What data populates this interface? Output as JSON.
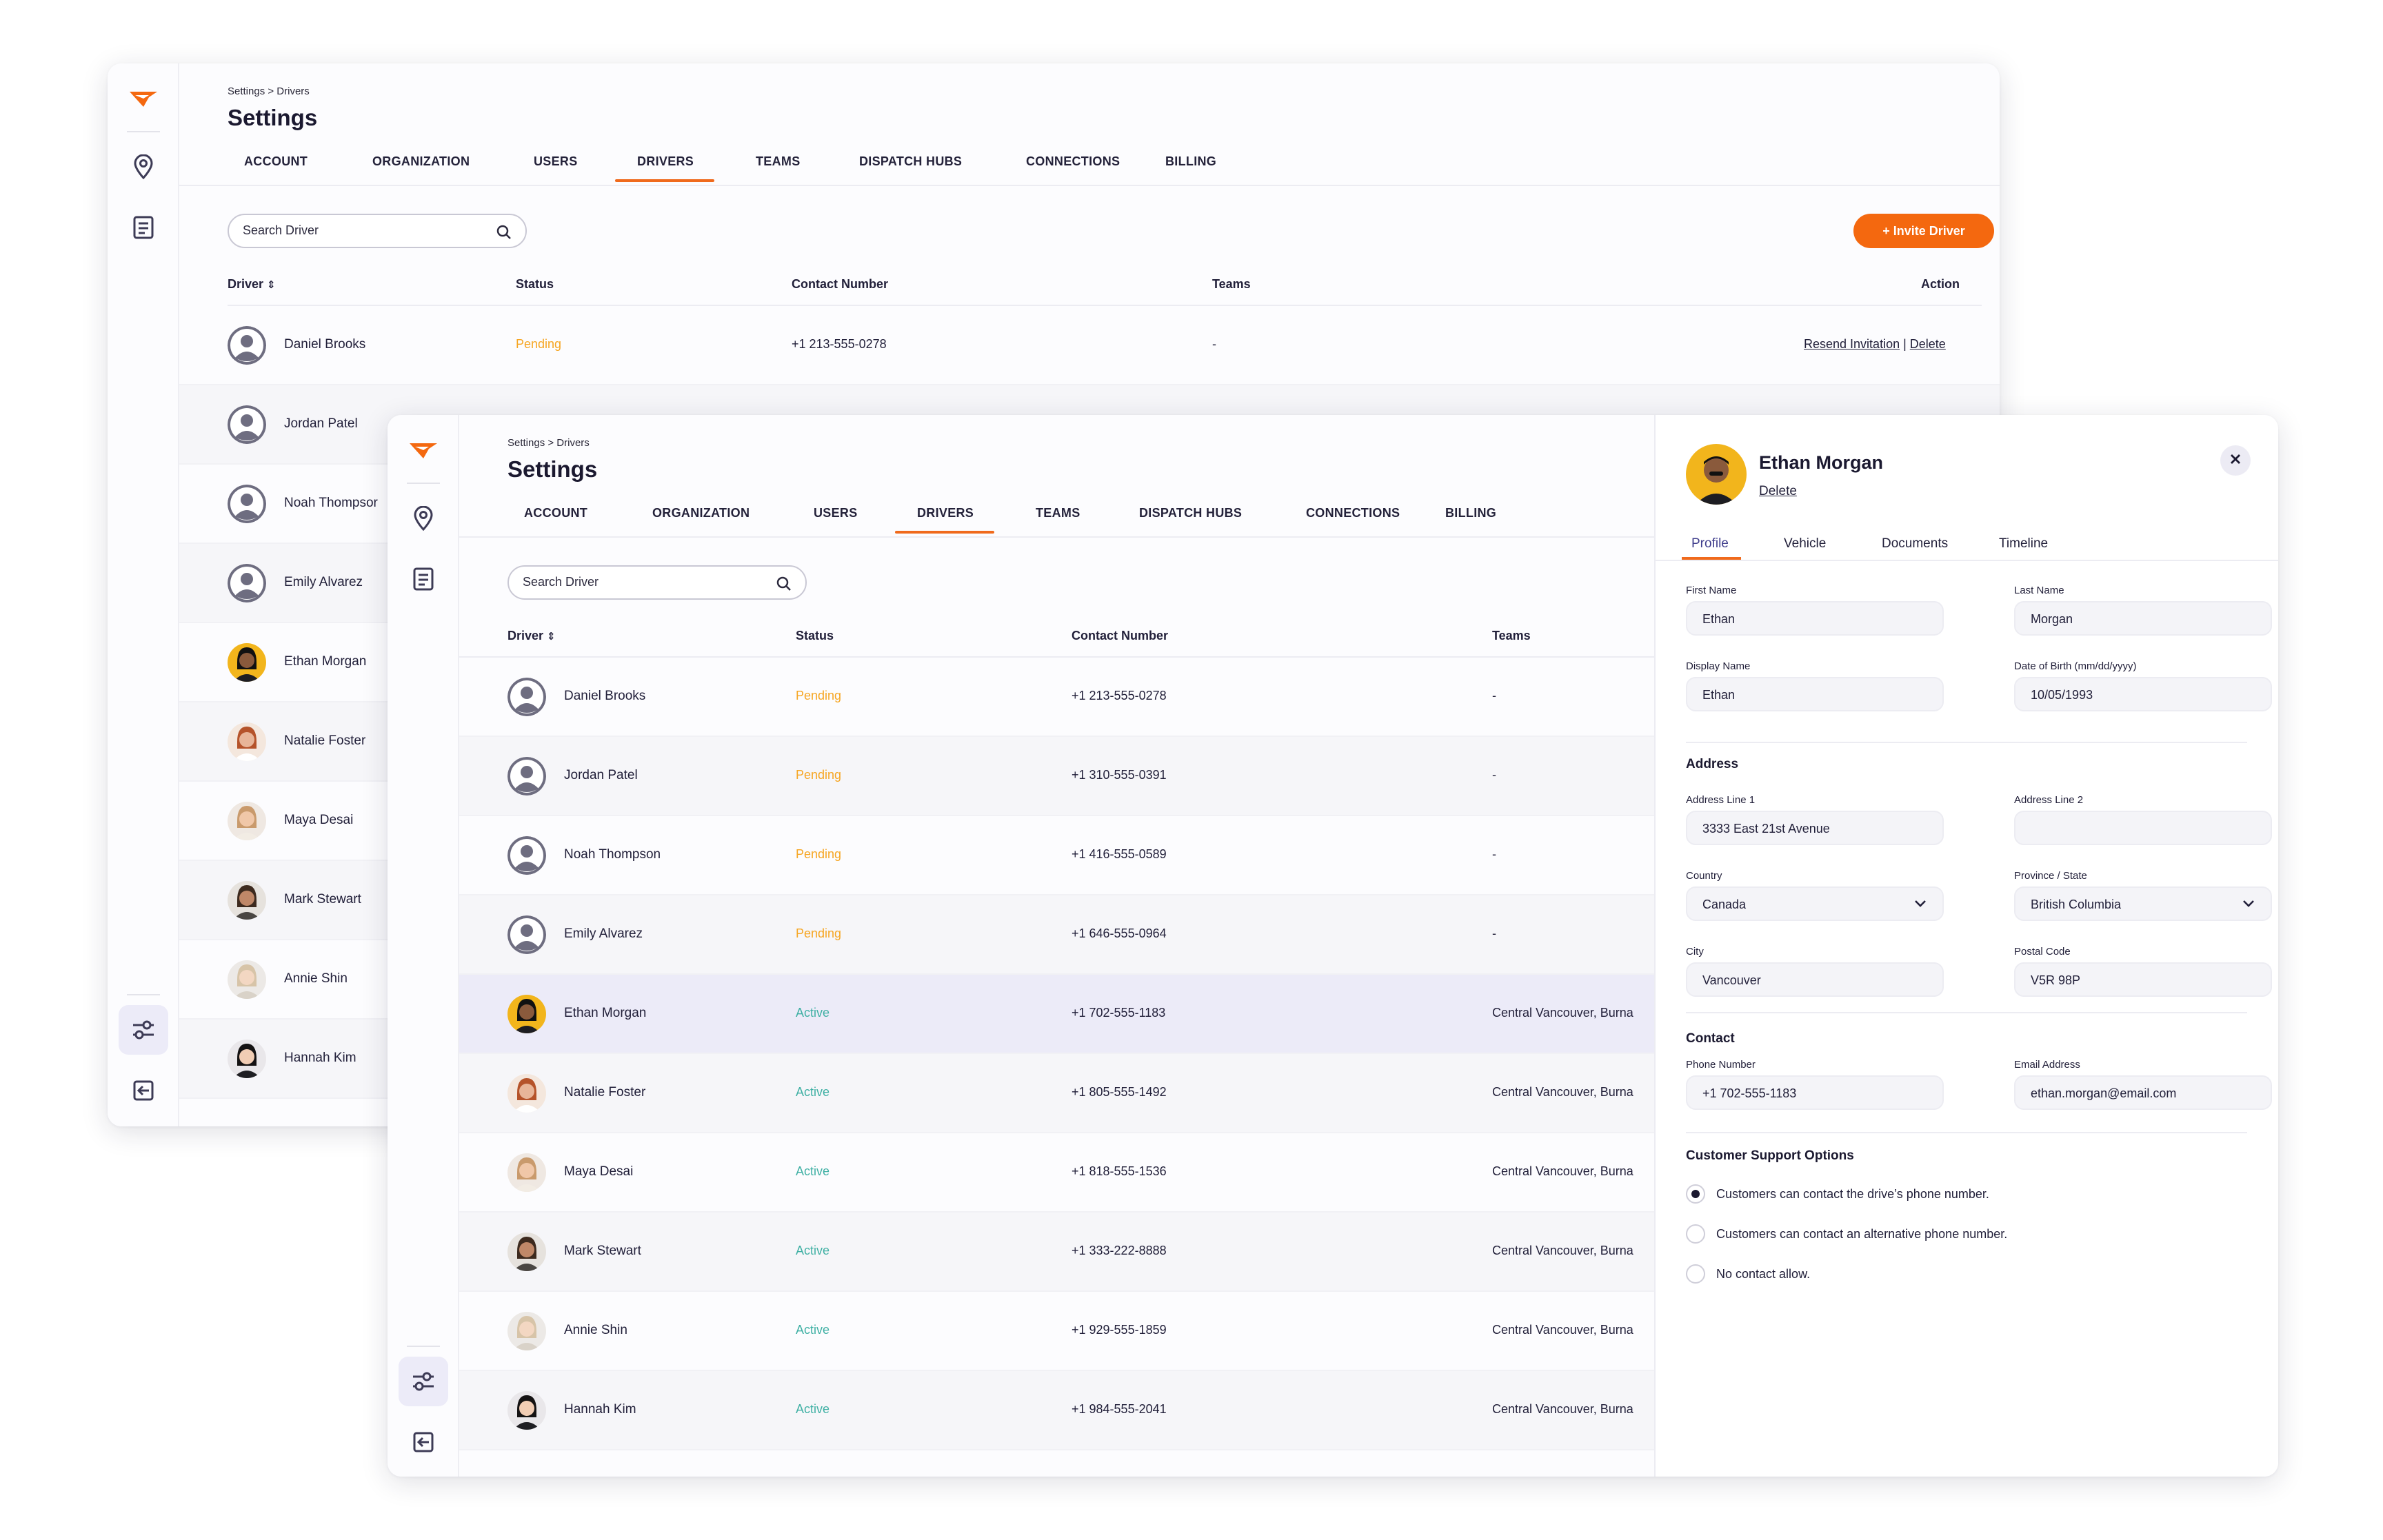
{
  "app": {
    "breadcrumb": "Settings > Drivers",
    "title": "Settings",
    "tabs": [
      "ACCOUNT",
      "ORGANIZATION",
      "USERS",
      "DRIVERS",
      "TEAMS",
      "DISPATCH HUBS",
      "CONNECTIONS",
      "BILLING"
    ],
    "active_tab": "DRIVERS",
    "search_placeholder": "Search Driver",
    "invite_label": "+ Invite Driver",
    "accent_color": "#f4680f",
    "columns": {
      "driver": "Driver",
      "status": "Status",
      "contact": "Contact Number",
      "teams": "Teams",
      "action": "Action"
    },
    "action_first_row": {
      "resend": "Resend Invitation",
      "sep": "|",
      "delete": "Delete"
    }
  },
  "drivers": [
    {
      "name": "Daniel Brooks",
      "status": "Pending",
      "phone": "+1 213-555-0278",
      "teams": "-"
    },
    {
      "name": "Jordan Patel",
      "status": "Pending",
      "phone": "+1 310-555-0391",
      "teams": "-"
    },
    {
      "name": "Noah Thompson",
      "status": "Pending",
      "phone": "+1 416-555-0589",
      "teams": "-"
    },
    {
      "name": "Emily Alvarez",
      "status": "Pending",
      "phone": "+1 646-555-0964",
      "teams": "-"
    },
    {
      "name": "Ethan Morgan",
      "status": "Active",
      "phone": "+1 702-555-1183",
      "teams": "Central Vancouver, Burna"
    },
    {
      "name": "Natalie Foster",
      "status": "Active",
      "phone": "+1 805-555-1492",
      "teams": "Central Vancouver, Burna"
    },
    {
      "name": "Maya Desai",
      "status": "Active",
      "phone": "+1 818-555-1536",
      "teams": "Central Vancouver, Burna"
    },
    {
      "name": "Mark Stewart",
      "status": "Active",
      "phone": "+1 333-222-8888",
      "teams": "Central Vancouver, Burna"
    },
    {
      "name": "Annie Shin",
      "status": "Active",
      "phone": "+1 929-555-1859",
      "teams": "Central Vancouver, Burna"
    },
    {
      "name": "Hannah Kim",
      "status": "Active",
      "phone": "+1 984-555-2041",
      "teams": "Central Vancouver, Burna"
    }
  ],
  "back_name_clipped": "Noah Thompsor",
  "status_colors": {
    "Pending": "#f6a623",
    "Active": "#3fb0a4"
  },
  "detail": {
    "name": "Ethan Morgan",
    "delete_label": "Delete",
    "tabs": [
      "Profile",
      "Vehicle",
      "Documents",
      "Timeline"
    ],
    "active_tab": "Profile",
    "fields": {
      "first_name": {
        "label": "First Name",
        "value": "Ethan"
      },
      "last_name": {
        "label": "Last Name",
        "value": "Morgan"
      },
      "display_name": {
        "label": "Display Name",
        "value": "Ethan"
      },
      "dob": {
        "label": "Date of Birth (mm/dd/yyyy)",
        "value": "10/05/1993"
      }
    },
    "address": {
      "title": "Address",
      "line1": {
        "label": "Address Line 1",
        "value": "3333 East 21st Avenue"
      },
      "line2": {
        "label": "Address Line 2",
        "value": ""
      },
      "country": {
        "label": "Country",
        "value": "Canada"
      },
      "province": {
        "label": "Province / State",
        "value": "British Columbia"
      },
      "city": {
        "label": "City",
        "value": "Vancouver"
      },
      "postal": {
        "label": "Postal Code",
        "value": "V5R 98P"
      }
    },
    "contact": {
      "title": "Contact",
      "phone": {
        "label": "Phone Number",
        "value": "+1 702-555-1183"
      },
      "email": {
        "label": "Email Address",
        "value": "ethan.morgan@email.com"
      }
    },
    "support": {
      "title": "Customer Support Options",
      "options": [
        "Customers can contact the drive’s phone number.",
        "Customers can contact an alternative phone number.",
        "No contact allow."
      ],
      "selected": 0
    }
  }
}
